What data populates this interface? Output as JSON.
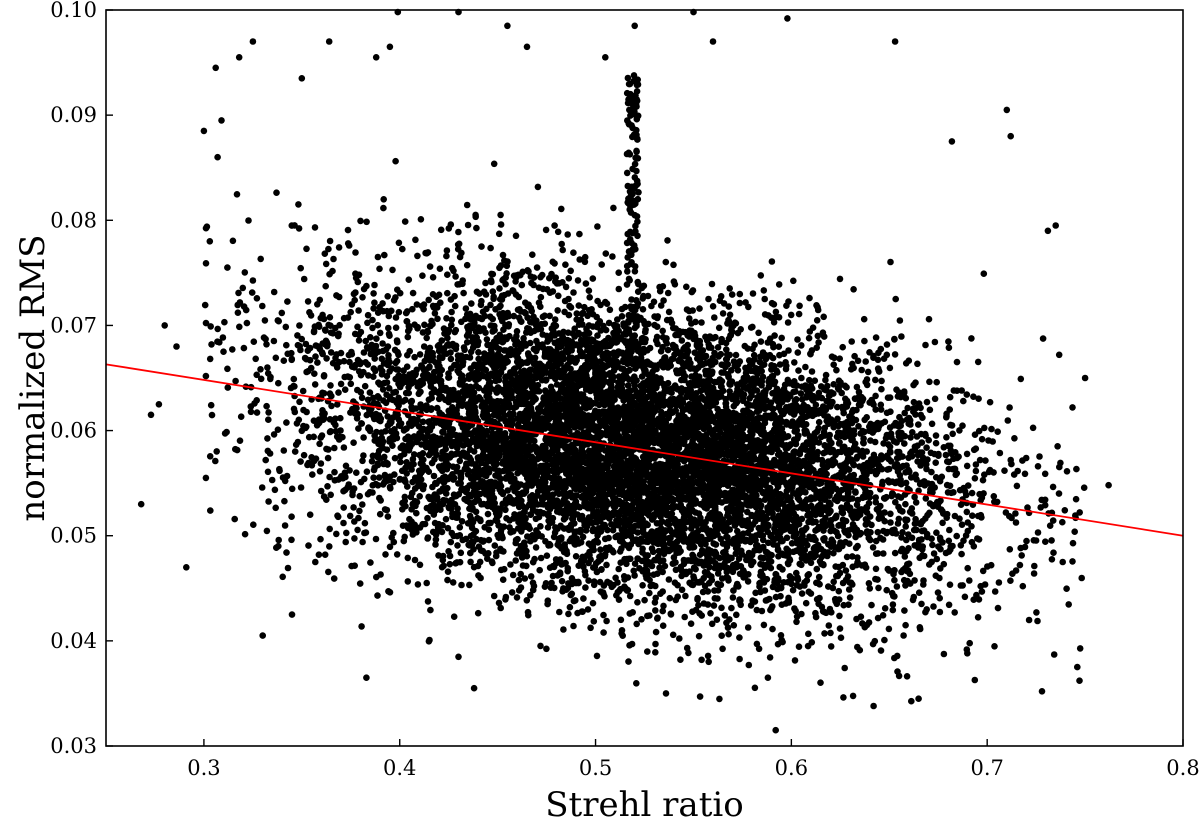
{
  "chart_data": {
    "type": "scatter",
    "title": "",
    "xlabel": "Strehl ratio",
    "ylabel": "normalized RMS",
    "xlim": [
      0.25,
      0.8
    ],
    "ylim": [
      0.03,
      0.1
    ],
    "xticks": [
      "0.3",
      "0.4",
      "0.5",
      "0.6",
      "0.7",
      "0.8"
    ],
    "yticks": [
      "0.03",
      "0.04",
      "0.05",
      "0.06",
      "0.07",
      "0.08",
      "0.09",
      "0.10"
    ],
    "grid": false,
    "legend": "none",
    "series": [
      {
        "kind": "points",
        "color": "#000000",
        "points": [
          [
            0.268,
            0.053
          ],
          [
            0.273,
            0.0615
          ],
          [
            0.277,
            0.0625
          ],
          [
            0.28,
            0.07
          ],
          [
            0.286,
            0.068
          ],
          [
            0.291,
            0.047
          ],
          [
            0.3,
            0.0885
          ],
          [
            0.301,
            0.0555
          ],
          [
            0.303,
            0.078
          ],
          [
            0.306,
            0.0945
          ],
          [
            0.307,
            0.086
          ],
          [
            0.309,
            0.0895
          ],
          [
            0.31,
            0.0675
          ],
          [
            0.312,
            0.0755
          ],
          [
            0.318,
            0.0955
          ],
          [
            0.325,
            0.097
          ],
          [
            0.33,
            0.0405
          ],
          [
            0.338,
            0.049
          ],
          [
            0.345,
            0.0425
          ],
          [
            0.35,
            0.0935
          ],
          [
            0.364,
            0.097
          ],
          [
            0.383,
            0.0365
          ],
          [
            0.388,
            0.0955
          ],
          [
            0.395,
            0.0965
          ],
          [
            0.399,
            0.0998
          ],
          [
            0.43,
            0.0998
          ],
          [
            0.438,
            0.0355
          ],
          [
            0.455,
            0.0985
          ],
          [
            0.465,
            0.0965
          ],
          [
            0.505,
            0.0955
          ],
          [
            0.52,
            0.0985
          ],
          [
            0.521,
            0.0915
          ],
          [
            0.536,
            0.035
          ],
          [
            0.55,
            0.0998
          ],
          [
            0.56,
            0.097
          ],
          [
            0.588,
            0.0365
          ],
          [
            0.592,
            0.0315
          ],
          [
            0.598,
            0.0992
          ],
          [
            0.642,
            0.0338
          ],
          [
            0.653,
            0.097
          ],
          [
            0.665,
            0.0345
          ],
          [
            0.682,
            0.0875
          ],
          [
            0.71,
            0.0905
          ],
          [
            0.712,
            0.088
          ],
          [
            0.728,
            0.0352
          ],
          [
            0.731,
            0.079
          ],
          [
            0.735,
            0.0795
          ],
          [
            0.746,
            0.0375
          ],
          [
            0.75,
            0.065
          ],
          [
            0.762,
            0.0548
          ]
        ]
      },
      {
        "kind": "fit-line",
        "color": "#ff0000",
        "points": [
          [
            0.25,
            0.0663
          ],
          [
            0.8,
            0.05
          ]
        ]
      }
    ]
  }
}
